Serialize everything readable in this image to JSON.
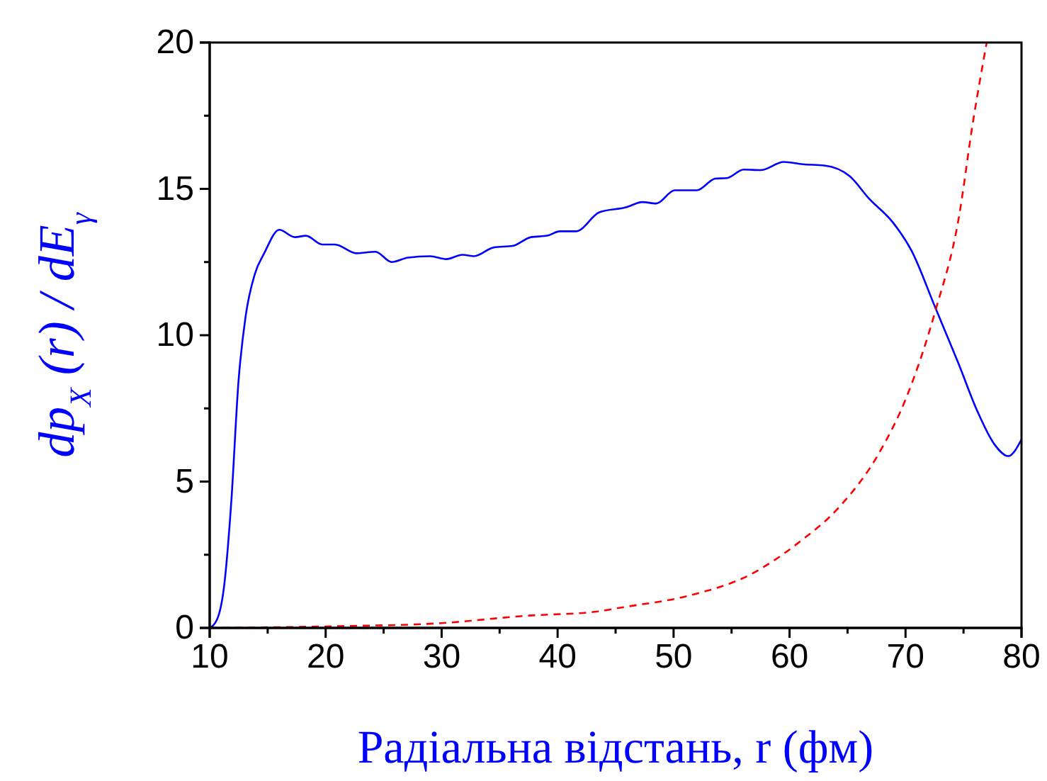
{
  "chart_data": {
    "type": "line",
    "xlabel": "Радіальна відстань, r (фм)",
    "ylabel": "dp$_{X}$ (r) / dE$_{γ}$",
    "xlim": [
      10,
      80
    ],
    "ylim": [
      0,
      20
    ],
    "xticks": [
      10,
      {
        "value": 15,
        "label": null
      },
      20,
      {
        "value": 25,
        "label": null
      },
      30,
      {
        "value": 35,
        "label": null
      },
      40,
      {
        "value": 45,
        "label": null
      },
      50,
      {
        "value": 55,
        "label": null
      },
      60,
      {
        "value": 65,
        "label": null
      },
      70,
      {
        "value": 75,
        "label": null
      },
      80
    ],
    "yticks": [
      0,
      {
        "value": 2.5,
        "label": null
      },
      5,
      {
        "value": 7.5,
        "label": null
      },
      10,
      {
        "value": 12.5,
        "label": null
      },
      15,
      {
        "value": 17.5,
        "label": null
      },
      20
    ],
    "grid": false,
    "series": [
      {
        "color": "#0000ff",
        "line_style": "solid",
        "x": [
          10,
          10.65,
          11.25,
          11.87,
          12.48,
          13.1,
          13.9,
          14.7,
          16.0,
          17.35,
          18.3,
          19.7,
          20.8,
          22.65,
          24.3,
          25.7,
          27.1,
          29.0,
          30.4,
          31.8,
          32.8,
          34.5,
          36.1,
          37.7,
          39.1,
          40.2,
          41.6,
          43.6,
          45.9,
          47.3,
          48.5,
          50.1,
          52.0,
          53.6,
          54.6,
          56.05,
          57.5,
          59.5,
          61.15,
          62.98,
          65.2,
          66.85,
          68.9,
          70.5,
          72.55,
          74.6,
          76.2,
          77.65,
          78.85,
          80.0
        ],
        "values": [
          0,
          0.3,
          1.45,
          4.35,
          8.4,
          10.65,
          12.1,
          12.8,
          13.6,
          13.35,
          13.4,
          13.1,
          13.1,
          12.8,
          12.85,
          12.5,
          12.65,
          12.7,
          12.6,
          12.75,
          12.7,
          13.0,
          13.05,
          13.35,
          13.4,
          13.55,
          13.55,
          14.2,
          14.37,
          14.55,
          14.5,
          14.95,
          14.95,
          15.35,
          15.37,
          15.66,
          15.64,
          15.92,
          15.84,
          15.8,
          15.43,
          14.67,
          13.86,
          12.9,
          10.96,
          9.0,
          7.4,
          6.28,
          5.87,
          6.44
        ]
      },
      {
        "color": "#ff0000",
        "line_style": "dashed",
        "x": [
          10,
          21.2,
          29.4,
          37.5,
          43.2,
          45.7,
          51.4,
          56.7,
          60.7,
          64.4,
          67.7,
          70.1,
          72.55,
          74.6,
          75.8,
          77.0
        ],
        "values": [
          0,
          0.06,
          0.15,
          0.42,
          0.55,
          0.71,
          1.11,
          1.84,
          2.89,
          4.18,
          5.96,
          7.9,
          10.8,
          14.03,
          17.25,
          20
        ]
      }
    ]
  }
}
